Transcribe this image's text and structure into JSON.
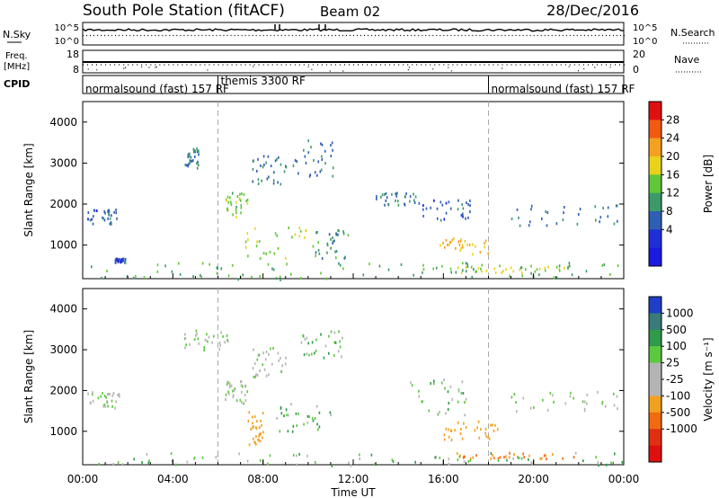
{
  "header": {
    "station": "South Pole Station (fitACF)",
    "beam": "Beam 02",
    "date": "28/Dec/2016"
  },
  "noise_panel": {
    "left_label": "N.Sky",
    "right_label": "N.Search",
    "left_ticks": [
      "10^5",
      "10^0"
    ],
    "right_ticks": [
      "10^5",
      "10^0"
    ]
  },
  "freq_panel": {
    "left_label_line1": "Freq.",
    "left_label_line2": "[MHz]",
    "left_ticks": [
      "18",
      "8"
    ],
    "right_label": "Nave",
    "right_ticks": [
      "20",
      "0"
    ]
  },
  "cpid": {
    "label": "CPID",
    "segments": [
      {
        "text": "normalsound (fast) 157 RF",
        "start_hour": 0
      },
      {
        "text": "themis 3300 RF",
        "start_hour": 6
      },
      {
        "text": "normalsound (fast) 157 RF",
        "start_hour": 18
      }
    ]
  },
  "x_axis": {
    "label": "Time UT",
    "tick_labels": [
      "00:00",
      "04:00",
      "08:00",
      "12:00",
      "16:00",
      "20:00",
      "00:00"
    ]
  },
  "chart_data": [
    {
      "type": "heatmap",
      "title": "",
      "xlabel": "Time UT",
      "ylabel": "Slant Range [km]",
      "xlim": [
        0,
        24
      ],
      "ylim": [
        180,
        4500
      ],
      "y_ticks": [
        1000,
        2000,
        3000,
        4000
      ],
      "colorbar": {
        "label": "Power [dB]",
        "ticks": [
          28,
          24,
          20,
          16,
          12,
          8,
          4
        ],
        "colors": [
          "#e01010",
          "#f25a10",
          "#f4a020",
          "#e8d21a",
          "#60c838",
          "#3c9a6a",
          "#2f5fb4",
          "#1f2fd8",
          "#1a1ae0"
        ]
      },
      "regions": [
        {
          "t": [
            0.2,
            1.5
          ],
          "r": [
            1500,
            1900
          ],
          "value": 6
        },
        {
          "t": [
            1.4,
            1.9
          ],
          "r": [
            600,
            700
          ],
          "value": 5
        },
        {
          "t": [
            4.5,
            5.2
          ],
          "r": [
            2900,
            3400
          ],
          "value": 8
        },
        {
          "t": [
            6.3,
            7.4
          ],
          "r": [
            1700,
            2300
          ],
          "value": 14
        },
        {
          "t": [
            7.5,
            9.0
          ],
          "r": [
            2500,
            3200
          ],
          "value": 7
        },
        {
          "t": [
            9.3,
            11.2
          ],
          "r": [
            2700,
            3600
          ],
          "value": 7
        },
        {
          "t": [
            7.2,
            10.5
          ],
          "r": [
            700,
            1500
          ],
          "value": 16
        },
        {
          "t": [
            10.3,
            11.8
          ],
          "r": [
            700,
            1400
          ],
          "value": 10
        },
        {
          "t": [
            13.0,
            15.0
          ],
          "r": [
            2000,
            2300
          ],
          "value": 7
        },
        {
          "t": [
            15.0,
            17.2
          ],
          "r": [
            1600,
            2200
          ],
          "value": 6
        },
        {
          "t": [
            15.8,
            18.0
          ],
          "r": [
            800,
            1200
          ],
          "value": 20
        },
        {
          "t": [
            16.5,
            21.5
          ],
          "r": [
            350,
            500
          ],
          "value": 17
        },
        {
          "t": [
            19.0,
            23.8
          ],
          "r": [
            1500,
            2000
          ],
          "value": 7
        },
        {
          "t": [
            0.0,
            24.0
          ],
          "r": [
            180,
            600
          ],
          "value": 12
        }
      ]
    },
    {
      "type": "heatmap",
      "title": "",
      "xlabel": "Time UT",
      "ylabel": "Slant Range [km]",
      "xlim": [
        0,
        24
      ],
      "ylim": [
        180,
        4500
      ],
      "y_ticks": [
        1000,
        2000,
        3000,
        4000
      ],
      "colorbar": {
        "label": "Velocity [m s⁻¹]",
        "ticks": [
          1000,
          500,
          100,
          25,
          -25,
          -100,
          -500,
          -1000
        ],
        "colors": [
          "#1f3fc8",
          "#3a7a7a",
          "#2f9a4a",
          "#5cc840",
          "#b4b4b4",
          "#b4b4b4",
          "#f2a020",
          "#f26a10",
          "#e03010",
          "#e01010"
        ]
      },
      "regions": [
        {
          "t": [
            0.2,
            1.6
          ],
          "r": [
            1600,
            2000
          ],
          "value": 0
        },
        {
          "t": [
            4.5,
            6.5
          ],
          "r": [
            3000,
            3500
          ],
          "value": 0
        },
        {
          "t": [
            6.3,
            7.3
          ],
          "r": [
            1700,
            2300
          ],
          "value": 0
        },
        {
          "t": [
            7.5,
            9.0
          ],
          "r": [
            2300,
            3100
          ],
          "value": 0
        },
        {
          "t": [
            9.5,
            11.5
          ],
          "r": [
            2800,
            3500
          ],
          "value": 60
        },
        {
          "t": [
            7.3,
            8.0
          ],
          "r": [
            700,
            1500
          ],
          "value": -300
        },
        {
          "t": [
            8.3,
            11.0
          ],
          "r": [
            1000,
            1700
          ],
          "value": 80
        },
        {
          "t": [
            14.5,
            17.0
          ],
          "r": [
            1400,
            2300
          ],
          "value": 30
        },
        {
          "t": [
            16.0,
            18.4
          ],
          "r": [
            800,
            1300
          ],
          "value": -300
        },
        {
          "t": [
            16.5,
            21.8
          ],
          "r": [
            350,
            500
          ],
          "value": -500
        },
        {
          "t": [
            19.0,
            23.8
          ],
          "r": [
            1500,
            2000
          ],
          "value": 0
        },
        {
          "t": [
            0.0,
            24.0
          ],
          "r": [
            180,
            500
          ],
          "value": 60
        }
      ]
    }
  ]
}
